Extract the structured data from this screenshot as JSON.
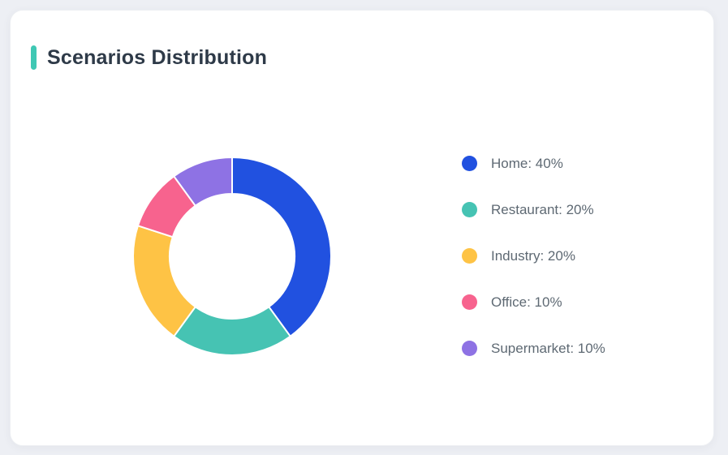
{
  "card": {
    "title": "Scenarios Distribution",
    "accent_color": "#3fc8b4"
  },
  "chart_data": {
    "type": "pie",
    "subtype": "donut",
    "title": "Scenarios Distribution",
    "categories": [
      "Home",
      "Restaurant",
      "Industry",
      "Office",
      "Supermarket"
    ],
    "values": [
      40,
      20,
      20,
      10,
      10
    ],
    "unit": "%",
    "colors": [
      "#2151e0",
      "#46c3b3",
      "#fec345",
      "#f7638e",
      "#8e72e4"
    ],
    "start_angle_deg": 0,
    "direction": "clockwise",
    "inner_radius_ratio": 0.63,
    "slice_gap_color": "#ffffff",
    "legend_position": "right",
    "legend": [
      {
        "label": "Home: 40%",
        "color": "#2151e0"
      },
      {
        "label": "Restaurant: 20%",
        "color": "#46c3b3"
      },
      {
        "label": "Industry: 20%",
        "color": "#fec345"
      },
      {
        "label": "Office: 10%",
        "color": "#f7638e"
      },
      {
        "label": "Supermarket: 10%",
        "color": "#8e72e4"
      }
    ]
  }
}
